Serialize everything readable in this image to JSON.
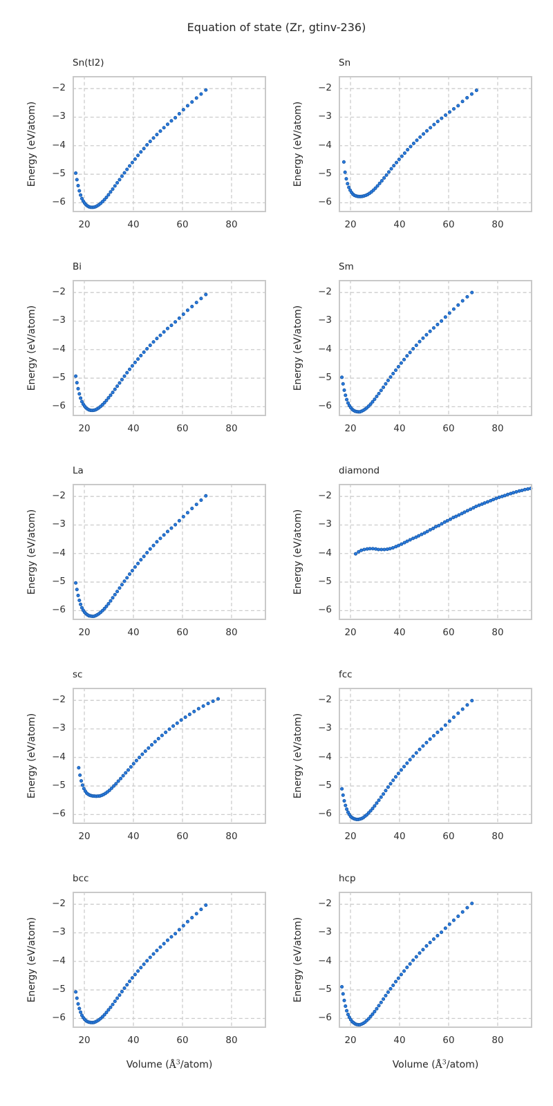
{
  "figure": {
    "background": "#ffffff",
    "text_color": "#262626",
    "grid_color": "#cccccc",
    "spine_color": "#c9c9c9",
    "marker_fill": "#2a7ade",
    "marker_edge": "#1659a8"
  },
  "chart_data": {
    "type": "scatter",
    "title": "Equation of state (Zr, gtinv-236)",
    "xlabel": "Volume (Å³/atom)",
    "xlabel_parts": {
      "pre": "Volume (",
      "symbol": "Å",
      "sup": "3",
      "post": "/atom)"
    },
    "ylabel": "Energy (eV/atom)",
    "grid": true,
    "layout": {
      "rows": 5,
      "cols": 2
    },
    "xlim": [
      15.2,
      94.1
    ],
    "ylim": [
      -6.33,
      -1.56
    ],
    "xticks": [
      20,
      40,
      60,
      80
    ],
    "yticks": [
      -2,
      -3,
      -4,
      -5,
      -6
    ],
    "subplots": [
      {
        "label": "Sn(tI2)",
        "x": [
          16.5,
          16.97,
          17.46,
          17.96,
          18.47,
          19.0,
          19.54,
          20.1,
          20.68,
          21.27,
          21.88,
          22.5,
          23.15,
          23.81,
          24.49,
          25.19,
          25.91,
          26.65,
          27.41,
          28.2,
          29.0,
          29.83,
          30.69,
          31.56,
          32.47,
          33.4,
          34.35,
          35.33,
          36.34,
          37.38,
          38.45,
          39.55,
          40.68,
          41.85,
          43.04,
          44.27,
          45.54,
          46.84,
          48.18,
          49.56,
          50.98,
          52.44,
          53.94,
          55.48,
          57.07,
          58.7,
          60.38,
          62.1,
          63.88,
          65.71,
          67.59,
          69.52
        ],
        "y": [
          -4.96,
          -5.19,
          -5.4,
          -5.58,
          -5.73,
          -5.85,
          -5.94,
          -6.01,
          -6.07,
          -6.11,
          -6.14,
          -6.155,
          -6.16,
          -6.155,
          -6.14,
          -6.11,
          -6.07,
          -6.02,
          -5.96,
          -5.89,
          -5.81,
          -5.72,
          -5.62,
          -5.52,
          -5.41,
          -5.3,
          -5.19,
          -5.07,
          -4.95,
          -4.83,
          -4.71,
          -4.59,
          -4.47,
          -4.34,
          -4.22,
          -4.1,
          -3.97,
          -3.85,
          -3.73,
          -3.61,
          -3.49,
          -3.37,
          -3.25,
          -3.13,
          -3.02,
          -2.88,
          -2.74,
          -2.6,
          -2.47,
          -2.33,
          -2.19,
          -2.05
        ]
      },
      {
        "label": "Sn",
        "x": [
          17.3,
          17.79,
          18.29,
          18.8,
          19.33,
          19.88,
          20.44,
          21.01,
          21.6,
          22.21,
          22.84,
          23.48,
          24.14,
          24.82,
          25.52,
          26.24,
          26.98,
          27.74,
          28.52,
          29.33,
          30.15,
          31.0,
          31.88,
          32.78,
          33.7,
          34.65,
          35.63,
          36.63,
          37.66,
          38.73,
          39.82,
          40.94,
          42.09,
          43.28,
          44.5,
          45.76,
          47.05,
          48.37,
          49.74,
          51.14,
          52.58,
          54.06,
          55.58,
          57.15,
          58.76,
          60.42,
          62.12,
          63.87,
          65.67,
          67.52,
          69.43,
          71.38
        ],
        "y": [
          -4.57,
          -4.93,
          -5.16,
          -5.33,
          -5.46,
          -5.56,
          -5.64,
          -5.7,
          -5.74,
          -5.76,
          -5.775,
          -5.78,
          -5.78,
          -5.775,
          -5.76,
          -5.74,
          -5.71,
          -5.67,
          -5.62,
          -5.56,
          -5.49,
          -5.41,
          -5.32,
          -5.23,
          -5.13,
          -5.03,
          -4.92,
          -4.81,
          -4.7,
          -4.59,
          -4.48,
          -4.37,
          -4.26,
          -4.14,
          -4.03,
          -3.92,
          -3.81,
          -3.7,
          -3.59,
          -3.48,
          -3.37,
          -3.26,
          -3.15,
          -3.04,
          -2.93,
          -2.82,
          -2.71,
          -2.6,
          -2.45,
          -2.32,
          -2.19,
          -2.06
        ]
      },
      {
        "label": "Bi",
        "x": [
          16.5,
          16.97,
          17.46,
          17.96,
          18.47,
          19.0,
          19.54,
          20.1,
          20.68,
          21.27,
          21.88,
          22.5,
          23.15,
          23.81,
          24.49,
          25.19,
          25.91,
          26.65,
          27.41,
          28.2,
          29.0,
          29.83,
          30.69,
          31.56,
          32.47,
          33.4,
          34.35,
          35.33,
          36.34,
          37.38,
          38.45,
          39.55,
          40.68,
          41.85,
          43.04,
          44.27,
          45.54,
          46.84,
          48.18,
          49.56,
          50.98,
          52.44,
          53.94,
          55.48,
          57.07,
          58.7,
          60.38,
          62.1,
          63.88,
          65.71,
          67.59,
          69.52
        ],
        "y": [
          -4.93,
          -5.16,
          -5.37,
          -5.55,
          -5.7,
          -5.82,
          -5.91,
          -5.98,
          -6.04,
          -6.08,
          -6.11,
          -6.125,
          -6.13,
          -6.125,
          -6.11,
          -6.08,
          -6.04,
          -5.99,
          -5.93,
          -5.86,
          -5.78,
          -5.69,
          -5.6,
          -5.5,
          -5.39,
          -5.28,
          -5.17,
          -5.05,
          -4.93,
          -4.81,
          -4.69,
          -4.57,
          -4.45,
          -4.33,
          -4.21,
          -4.09,
          -3.97,
          -3.85,
          -3.73,
          -3.61,
          -3.5,
          -3.38,
          -3.26,
          -3.15,
          -3.03,
          -2.9,
          -2.76,
          -2.62,
          -2.49,
          -2.35,
          -2.21,
          -2.07
        ]
      },
      {
        "label": "Sm",
        "x": [
          16.5,
          16.97,
          17.46,
          17.96,
          18.47,
          19.0,
          19.54,
          20.1,
          20.68,
          21.27,
          21.88,
          22.5,
          23.15,
          23.81,
          24.49,
          25.19,
          25.91,
          26.65,
          27.41,
          28.2,
          29.0,
          29.83,
          30.69,
          31.56,
          32.47,
          33.4,
          34.35,
          35.33,
          36.34,
          37.38,
          38.45,
          39.55,
          40.68,
          41.85,
          43.04,
          44.27,
          45.54,
          46.84,
          48.18,
          49.56,
          50.98,
          52.44,
          53.94,
          55.48,
          57.07,
          58.7,
          60.38,
          62.1,
          63.88,
          65.71,
          67.59,
          69.52
        ],
        "y": [
          -4.97,
          -5.2,
          -5.42,
          -5.6,
          -5.75,
          -5.87,
          -5.96,
          -6.03,
          -6.09,
          -6.13,
          -6.16,
          -6.17,
          -6.18,
          -6.18,
          -6.16,
          -6.13,
          -6.09,
          -6.04,
          -5.98,
          -5.91,
          -5.83,
          -5.74,
          -5.64,
          -5.54,
          -5.43,
          -5.32,
          -5.2,
          -5.08,
          -4.96,
          -4.84,
          -4.72,
          -4.6,
          -4.47,
          -4.35,
          -4.22,
          -4.1,
          -3.97,
          -3.85,
          -3.72,
          -3.6,
          -3.48,
          -3.36,
          -3.24,
          -3.12,
          -3.0,
          -2.86,
          -2.72,
          -2.58,
          -2.44,
          -2.29,
          -2.15,
          -2.0
        ]
      },
      {
        "label": "La",
        "x": [
          16.5,
          16.97,
          17.46,
          17.96,
          18.47,
          19.0,
          19.54,
          20.1,
          20.68,
          21.27,
          21.88,
          22.5,
          23.15,
          23.81,
          24.49,
          25.19,
          25.91,
          26.65,
          27.41,
          28.2,
          29.0,
          29.83,
          30.69,
          31.56,
          32.47,
          33.4,
          34.35,
          35.33,
          36.34,
          37.38,
          38.45,
          39.55,
          40.68,
          41.85,
          43.04,
          44.27,
          45.54,
          46.84,
          48.18,
          49.56,
          50.98,
          52.44,
          53.94,
          55.48,
          57.07,
          58.7,
          60.38,
          62.1,
          63.88,
          65.71,
          67.59,
          69.52
        ],
        "y": [
          -5.03,
          -5.26,
          -5.47,
          -5.64,
          -5.78,
          -5.9,
          -5.99,
          -6.06,
          -6.11,
          -6.15,
          -6.18,
          -6.19,
          -6.2,
          -6.2,
          -6.18,
          -6.15,
          -6.11,
          -6.06,
          -6.0,
          -5.93,
          -5.85,
          -5.76,
          -5.66,
          -5.55,
          -5.44,
          -5.33,
          -5.21,
          -5.09,
          -4.97,
          -4.85,
          -4.72,
          -4.6,
          -4.47,
          -4.35,
          -4.22,
          -4.1,
          -3.97,
          -3.84,
          -3.72,
          -3.59,
          -3.47,
          -3.35,
          -3.23,
          -3.11,
          -2.99,
          -2.85,
          -2.71,
          -2.57,
          -2.42,
          -2.28,
          -2.13,
          -1.98
        ]
      },
      {
        "label": "diamond",
        "x": [
          22.1,
          23.3,
          24.4,
          25.6,
          26.8,
          27.9,
          29.1,
          30.3,
          31.4,
          32.6,
          33.8,
          35.0,
          36.1,
          37.3,
          38.5,
          39.6,
          40.8,
          42.0,
          43.1,
          44.3,
          45.5,
          46.7,
          47.8,
          49.0,
          50.2,
          51.3,
          52.5,
          53.7,
          54.8,
          56.0,
          57.2,
          58.4,
          59.5,
          60.7,
          61.9,
          63.0,
          64.2,
          65.4,
          66.5,
          67.7,
          68.9,
          70.1,
          71.2,
          72.4,
          73.6,
          74.7,
          75.9,
          77.1,
          78.2,
          79.4,
          80.6,
          81.8,
          82.9,
          84.1,
          85.3,
          86.4,
          87.6,
          88.8,
          89.9,
          91.1,
          92.3,
          93.5
        ],
        "y": [
          -4.01,
          -3.94,
          -3.89,
          -3.86,
          -3.84,
          -3.83,
          -3.83,
          -3.84,
          -3.86,
          -3.86,
          -3.86,
          -3.85,
          -3.83,
          -3.8,
          -3.76,
          -3.72,
          -3.67,
          -3.62,
          -3.57,
          -3.52,
          -3.47,
          -3.43,
          -3.38,
          -3.33,
          -3.28,
          -3.23,
          -3.17,
          -3.12,
          -3.06,
          -3.02,
          -2.96,
          -2.9,
          -2.85,
          -2.8,
          -2.74,
          -2.7,
          -2.65,
          -2.6,
          -2.55,
          -2.5,
          -2.45,
          -2.4,
          -2.35,
          -2.31,
          -2.27,
          -2.23,
          -2.19,
          -2.15,
          -2.11,
          -2.07,
          -2.03,
          -2.0,
          -1.97,
          -1.93,
          -1.9,
          -1.87,
          -1.84,
          -1.81,
          -1.79,
          -1.76,
          -1.74,
          -1.72
        ]
      },
      {
        "label": "sc",
        "x": [
          17.7,
          18.21,
          18.73,
          19.26,
          19.81,
          20.38,
          20.96,
          21.56,
          22.18,
          22.81,
          23.46,
          24.13,
          24.82,
          25.53,
          26.26,
          27.01,
          27.78,
          28.58,
          29.39,
          30.23,
          31.1,
          31.99,
          32.9,
          33.84,
          34.81,
          35.81,
          36.83,
          37.88,
          38.97,
          40.08,
          41.23,
          42.41,
          43.62,
          44.87,
          46.15,
          47.47,
          48.83,
          50.22,
          51.66,
          53.14,
          54.66,
          56.22,
          57.83,
          59.48,
          61.18,
          62.93,
          64.73,
          66.58,
          68.49,
          70.44,
          72.46,
          74.53
        ],
        "y": [
          -4.36,
          -4.62,
          -4.82,
          -4.97,
          -5.09,
          -5.18,
          -5.25,
          -5.29,
          -5.32,
          -5.34,
          -5.35,
          -5.355,
          -5.36,
          -5.355,
          -5.35,
          -5.33,
          -5.3,
          -5.26,
          -5.21,
          -5.15,
          -5.08,
          -5.0,
          -4.92,
          -4.83,
          -4.74,
          -4.64,
          -4.54,
          -4.44,
          -4.33,
          -4.22,
          -4.11,
          -4.0,
          -3.89,
          -3.78,
          -3.67,
          -3.56,
          -3.45,
          -3.34,
          -3.23,
          -3.12,
          -3.01,
          -2.9,
          -2.8,
          -2.69,
          -2.59,
          -2.49,
          -2.39,
          -2.29,
          -2.2,
          -2.11,
          -2.03,
          -1.95
        ]
      },
      {
        "label": "fcc",
        "x": [
          16.5,
          16.97,
          17.46,
          17.96,
          18.47,
          19.0,
          19.54,
          20.1,
          20.68,
          21.27,
          21.88,
          22.5,
          23.15,
          23.81,
          24.49,
          25.19,
          25.91,
          26.65,
          27.41,
          28.2,
          29.0,
          29.83,
          30.69,
          31.56,
          32.47,
          33.4,
          34.35,
          35.33,
          36.34,
          37.38,
          38.45,
          39.55,
          40.68,
          41.85,
          43.04,
          44.27,
          45.54,
          46.84,
          48.18,
          49.56,
          50.98,
          52.44,
          53.94,
          55.48,
          57.07,
          58.7,
          60.38,
          62.1,
          63.88,
          65.71,
          67.59,
          69.52
        ],
        "y": [
          -5.1,
          -5.32,
          -5.52,
          -5.68,
          -5.81,
          -5.92,
          -6.0,
          -6.07,
          -6.11,
          -6.14,
          -6.16,
          -6.17,
          -6.17,
          -6.16,
          -6.14,
          -6.11,
          -6.06,
          -6.01,
          -5.94,
          -5.87,
          -5.79,
          -5.7,
          -5.6,
          -5.5,
          -5.39,
          -5.28,
          -5.16,
          -5.04,
          -4.92,
          -4.8,
          -4.68,
          -4.56,
          -4.44,
          -4.32,
          -4.2,
          -4.08,
          -3.96,
          -3.84,
          -3.72,
          -3.6,
          -3.48,
          -3.36,
          -3.24,
          -3.12,
          -3.01,
          -2.87,
          -2.73,
          -2.59,
          -2.45,
          -2.31,
          -2.16,
          -2.01
        ]
      },
      {
        "label": "bcc",
        "x": [
          16.5,
          16.97,
          17.46,
          17.96,
          18.47,
          19.0,
          19.54,
          20.1,
          20.68,
          21.27,
          21.88,
          22.5,
          23.15,
          23.81,
          24.49,
          25.19,
          25.91,
          26.65,
          27.41,
          28.2,
          29.0,
          29.83,
          30.69,
          31.56,
          32.47,
          33.4,
          34.35,
          35.33,
          36.34,
          37.38,
          38.45,
          39.55,
          40.68,
          41.85,
          43.04,
          44.27,
          45.54,
          46.84,
          48.18,
          49.56,
          50.98,
          52.44,
          53.94,
          55.48,
          57.07,
          58.7,
          60.38,
          62.1,
          63.88,
          65.71,
          67.59,
          69.52
        ],
        "y": [
          -5.07,
          -5.29,
          -5.49,
          -5.65,
          -5.78,
          -5.89,
          -5.97,
          -6.03,
          -6.08,
          -6.11,
          -6.13,
          -6.14,
          -6.145,
          -6.14,
          -6.12,
          -6.09,
          -6.05,
          -6.0,
          -5.94,
          -5.87,
          -5.79,
          -5.7,
          -5.61,
          -5.51,
          -5.4,
          -5.29,
          -5.18,
          -5.06,
          -4.94,
          -4.82,
          -4.7,
          -4.58,
          -4.46,
          -4.34,
          -4.22,
          -4.1,
          -3.98,
          -3.86,
          -3.74,
          -3.62,
          -3.5,
          -3.38,
          -3.26,
          -3.14,
          -3.03,
          -2.89,
          -2.75,
          -2.61,
          -2.47,
          -2.33,
          -2.18,
          -2.03
        ]
      },
      {
        "label": "hcp",
        "x": [
          16.5,
          16.97,
          17.46,
          17.96,
          18.47,
          19.0,
          19.54,
          20.1,
          20.68,
          21.27,
          21.88,
          22.5,
          23.15,
          23.81,
          24.49,
          25.19,
          25.91,
          26.65,
          27.41,
          28.2,
          29.0,
          29.83,
          30.69,
          31.56,
          32.47,
          33.4,
          34.35,
          35.33,
          36.34,
          37.38,
          38.45,
          39.55,
          40.68,
          41.85,
          43.04,
          44.27,
          45.54,
          46.84,
          48.18,
          49.56,
          50.98,
          52.44,
          53.94,
          55.48,
          57.07,
          58.7,
          60.38,
          62.1,
          63.88,
          65.71,
          67.59,
          69.52
        ],
        "y": [
          -4.89,
          -5.14,
          -5.37,
          -5.57,
          -5.73,
          -5.86,
          -5.96,
          -6.04,
          -6.11,
          -6.15,
          -6.19,
          -6.21,
          -6.22,
          -6.22,
          -6.2,
          -6.17,
          -6.13,
          -6.07,
          -6.01,
          -5.93,
          -5.85,
          -5.76,
          -5.66,
          -5.55,
          -5.44,
          -5.32,
          -5.2,
          -5.08,
          -4.96,
          -4.84,
          -4.71,
          -4.59,
          -4.46,
          -4.34,
          -4.21,
          -4.09,
          -3.96,
          -3.84,
          -3.71,
          -3.59,
          -3.46,
          -3.34,
          -3.22,
          -3.1,
          -2.98,
          -2.84,
          -2.7,
          -2.56,
          -2.42,
          -2.27,
          -2.12,
          -1.97
        ]
      }
    ]
  }
}
